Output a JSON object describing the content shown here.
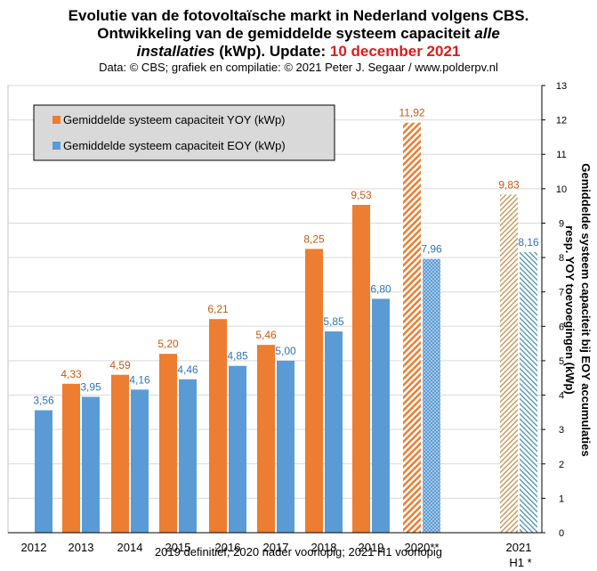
{
  "header": {
    "title_line1": "Evolutie van de fotovoltaïsche markt in Nederland volgens CBS.",
    "title_line2_a": "Ontwikkeling van de gemiddelde systeem capaciteit ",
    "title_line2_b": "alle",
    "title_line3_a": "installaties",
    "title_line3_b": " (kWp). Update: ",
    "title_line3_c": "10 december 2021",
    "credit": "Data: © CBS; grafiek en compilatie: © 2021 Peter J. Segaar / www.polderpv.nl"
  },
  "footnote": "2019 definitief; 2020 nader voorlopig; 2021 H1 voorlopig",
  "colors": {
    "yoy": "#ED7D31",
    "eoy": "#5B9BD5",
    "yoy_label": "#C55A11",
    "eoy_label": "#2E75B6",
    "plot_bg": "#ffffff",
    "grid": "#d9d9d9",
    "legend_bg": "#d9d9d9"
  },
  "chart_data": {
    "type": "bar",
    "categories": [
      "2012",
      "2013",
      "2014",
      "2015",
      "2016",
      "2017",
      "2018",
      "2019",
      "2020**",
      "",
      "2021"
    ],
    "category_sublabels": [
      "",
      "",
      "",
      "",
      "",
      "",
      "",
      "",
      "",
      "",
      "H1 *"
    ],
    "series": [
      {
        "name": "Gemiddelde systeem capaciteit YOY (kWp)",
        "values": [
          null,
          4.33,
          4.59,
          5.2,
          6.21,
          5.46,
          8.25,
          9.53,
          11.92,
          null,
          9.83
        ],
        "labels": [
          "",
          "4,33",
          "4,59",
          "5,20",
          "6,21",
          "5,46",
          "8,25",
          "9,53",
          "11,92",
          "",
          "9,83"
        ]
      },
      {
        "name": "Gemiddelde systeem capaciteit EOY (kWp)",
        "values": [
          3.56,
          3.95,
          4.16,
          4.46,
          4.85,
          5.0,
          5.85,
          6.8,
          7.96,
          null,
          8.16
        ],
        "labels": [
          "3,56",
          "3,95",
          "4,16",
          "4,46",
          "4,85",
          "5,00",
          "5,85",
          "6,80",
          "7,96",
          "",
          "8,16"
        ]
      }
    ],
    "provisional_categories": [
      "2020**",
      "2021"
    ],
    "ylabel_line1": "Gemiddelde systeem capaciteit bij EOY accumulaties",
    "ylabel_line2": "resp. YOY toevoegingen (kWp)",
    "ylim": [
      0,
      13
    ],
    "yticks": [
      "0",
      "1",
      "2",
      "3",
      "4",
      "5",
      "6",
      "7",
      "8",
      "9",
      "10",
      "11",
      "12",
      "13"
    ],
    "y_axis_side": "right",
    "grid": true,
    "legend_position": "top-left"
  }
}
